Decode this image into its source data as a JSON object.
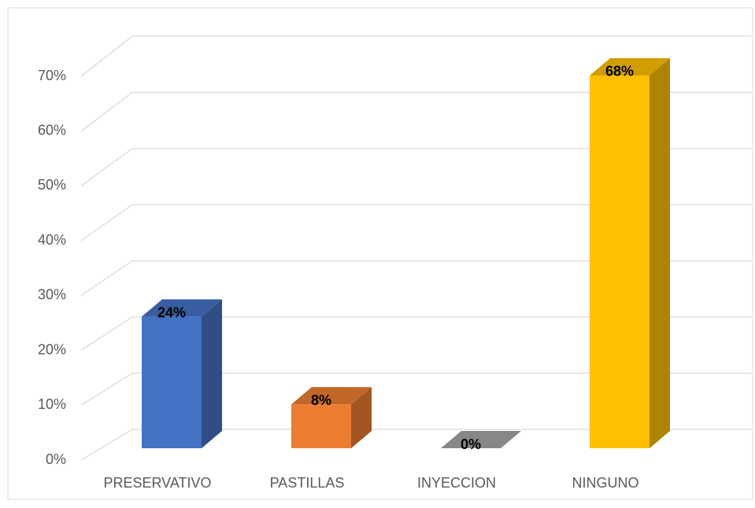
{
  "chart_data": {
    "type": "bar3d",
    "categories": [
      "PRESERVATIVO",
      "PASTILLAS",
      "INYECCION",
      "NINGUNO"
    ],
    "values": [
      24,
      8,
      0,
      68
    ],
    "value_labels": [
      "24%",
      "8%",
      "0%",
      "68%"
    ],
    "colors": [
      "#4472c4",
      "#ed7d31",
      "#a5a5a5",
      "#ffc000"
    ],
    "ylim": [
      0,
      70
    ],
    "yticks": [
      {
        "value": 0,
        "label": "0%"
      },
      {
        "value": 10,
        "label": "10%"
      },
      {
        "value": 20,
        "label": "20%"
      },
      {
        "value": 30,
        "label": "30%"
      },
      {
        "value": 40,
        "label": "40%"
      },
      {
        "value": 50,
        "label": "50%"
      },
      {
        "value": 60,
        "label": "60%"
      },
      {
        "value": 70,
        "label": "70%"
      }
    ],
    "grid": true
  }
}
